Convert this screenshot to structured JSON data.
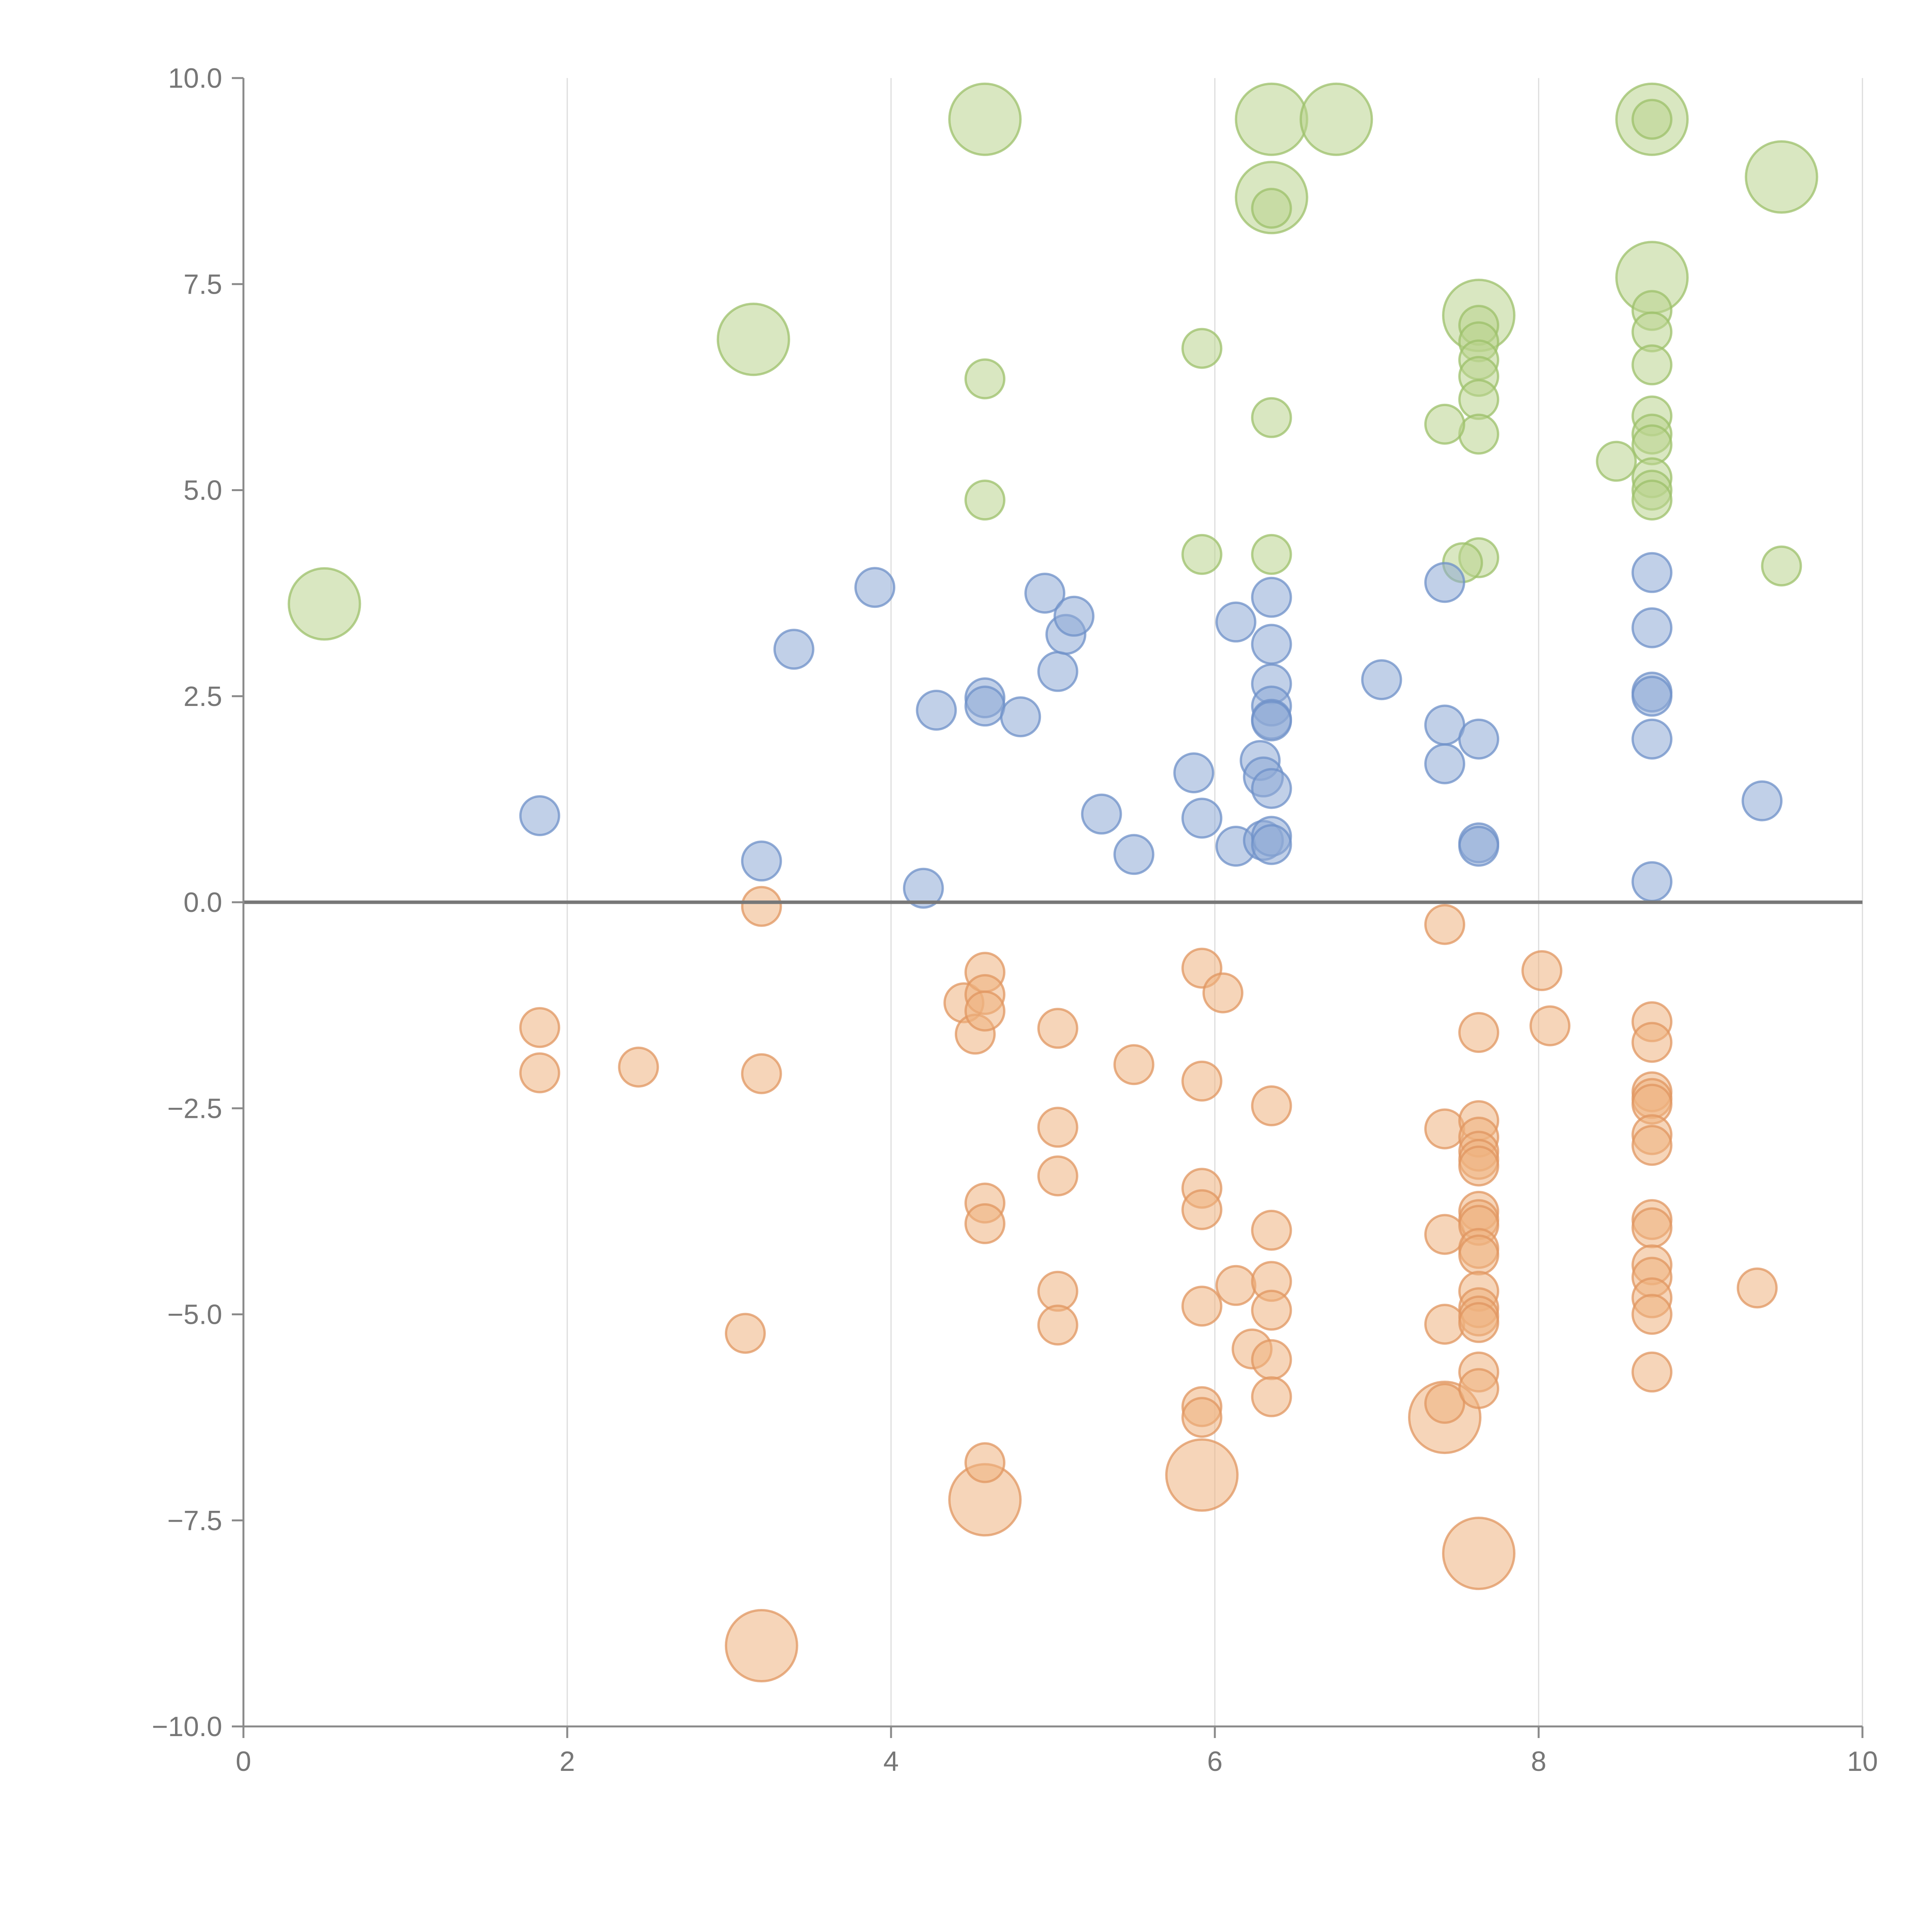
{
  "chart_data": {
    "type": "scatter",
    "title": "",
    "xlabel": "",
    "ylabel": "",
    "xlim": [
      0,
      10
    ],
    "ylim": [
      -10,
      10
    ],
    "grid": "vertical lines at x ticks",
    "legend": "none",
    "xticks": [
      "0",
      "2",
      "4",
      "6",
      "8",
      "10"
    ],
    "xtick_values": [
      0,
      2,
      4,
      6,
      8,
      10
    ],
    "yticks": [
      "10.0",
      "7.5",
      "5.0",
      "2.5",
      "0.0",
      "−2.5",
      "−5.0",
      "−7.5",
      "−10.0"
    ],
    "ytick_values": [
      10,
      7.5,
      5,
      2.5,
      0,
      -2.5,
      -5,
      -7.5,
      -10
    ],
    "zero_line_color": "#777777",
    "series": [
      {
        "name": "green",
        "fill": "#b9d48e",
        "stroke": "#9cc06a",
        "points": [
          [
            0.5,
            3.62,
            1
          ],
          [
            3.15,
            6.83,
            1
          ],
          [
            4.58,
            9.5,
            1
          ],
          [
            6.35,
            9.5,
            1
          ],
          [
            6.75,
            9.5,
            1
          ],
          [
            6.35,
            8.55,
            1
          ],
          [
            8.7,
            9.5,
            1
          ],
          [
            9.5,
            8.8,
            1
          ],
          [
            8.7,
            7.58,
            1
          ],
          [
            7.63,
            7.12,
            1
          ],
          [
            6.35,
            8.42,
            0
          ],
          [
            8.7,
            9.5,
            0
          ],
          [
            8.7,
            7.18,
            0
          ],
          [
            8.7,
            6.92,
            0
          ],
          [
            8.7,
            6.52,
            0
          ],
          [
            8.7,
            5.9,
            0
          ],
          [
            8.7,
            5.68,
            0
          ],
          [
            8.7,
            5.55,
            0
          ],
          [
            8.7,
            5.15,
            0
          ],
          [
            8.7,
            5.0,
            0
          ],
          [
            8.7,
            4.88,
            0
          ],
          [
            8.48,
            5.35,
            0
          ],
          [
            7.63,
            7.0,
            0
          ],
          [
            7.63,
            6.8,
            0
          ],
          [
            7.63,
            6.58,
            0
          ],
          [
            7.63,
            6.38,
            0
          ],
          [
            7.63,
            6.1,
            0
          ],
          [
            7.63,
            5.68,
            0
          ],
          [
            7.42,
            5.8,
            0
          ],
          [
            7.63,
            4.18,
            0
          ],
          [
            7.53,
            4.12,
            0
          ],
          [
            5.92,
            6.72,
            0
          ],
          [
            4.58,
            6.35,
            0
          ],
          [
            4.58,
            4.88,
            0
          ],
          [
            5.92,
            4.22,
            0
          ],
          [
            6.35,
            5.88,
            0
          ],
          [
            6.35,
            4.22,
            0
          ],
          [
            9.5,
            4.08,
            0
          ]
        ]
      },
      {
        "name": "blue",
        "fill": "#8eaad6",
        "stroke": "#6e90c8",
        "points": [
          [
            1.83,
            1.05,
            0
          ],
          [
            3.2,
            0.5,
            0
          ],
          [
            3.4,
            3.07,
            0
          ],
          [
            3.9,
            3.82,
            0
          ],
          [
            4.2,
            0.17,
            0
          ],
          [
            4.28,
            2.33,
            0
          ],
          [
            4.58,
            2.48,
            0
          ],
          [
            4.58,
            2.38,
            0
          ],
          [
            4.8,
            2.25,
            0
          ],
          [
            4.95,
            3.75,
            0
          ],
          [
            5.03,
            2.8,
            0
          ],
          [
            5.08,
            3.25,
            0
          ],
          [
            5.13,
            3.47,
            0
          ],
          [
            5.3,
            1.07,
            0
          ],
          [
            5.5,
            0.58,
            0
          ],
          [
            5.87,
            1.57,
            0
          ],
          [
            5.92,
            1.02,
            0
          ],
          [
            6.13,
            0.68,
            0
          ],
          [
            6.13,
            3.4,
            0
          ],
          [
            6.28,
            1.72,
            0
          ],
          [
            6.3,
            0.75,
            0
          ],
          [
            6.3,
            1.52,
            0
          ],
          [
            6.35,
            3.7,
            0
          ],
          [
            6.35,
            3.13,
            0
          ],
          [
            6.35,
            2.65,
            0
          ],
          [
            6.35,
            2.38,
            0
          ],
          [
            6.35,
            2.22,
            0
          ],
          [
            6.35,
            2.2,
            0
          ],
          [
            6.35,
            1.38,
            0
          ],
          [
            6.35,
            0.8,
            0
          ],
          [
            6.35,
            0.7,
            0
          ],
          [
            7.03,
            2.7,
            0
          ],
          [
            7.42,
            3.88,
            0
          ],
          [
            7.42,
            2.15,
            0
          ],
          [
            7.42,
            1.68,
            0
          ],
          [
            7.63,
            1.98,
            0
          ],
          [
            7.63,
            0.72,
            0
          ],
          [
            7.63,
            0.68,
            0
          ],
          [
            8.7,
            4.0,
            0
          ],
          [
            8.7,
            3.33,
            0
          ],
          [
            8.7,
            2.55,
            0
          ],
          [
            8.7,
            2.5,
            0
          ],
          [
            8.7,
            1.98,
            0
          ],
          [
            8.7,
            0.25,
            0
          ],
          [
            9.38,
            1.23,
            0
          ]
        ]
      },
      {
        "name": "orange",
        "fill": "#eeb280",
        "stroke": "#e09660",
        "points": [
          [
            3.2,
            -9.02,
            1
          ],
          [
            4.58,
            -7.25,
            1
          ],
          [
            5.92,
            -6.95,
            1
          ],
          [
            7.42,
            -6.25,
            1
          ],
          [
            7.63,
            -7.9,
            1
          ],
          [
            1.83,
            -1.52,
            0
          ],
          [
            1.83,
            -2.07,
            0
          ],
          [
            2.44,
            -2.0,
            0
          ],
          [
            3.1,
            -5.23,
            0
          ],
          [
            3.2,
            -0.05,
            0
          ],
          [
            3.2,
            -2.08,
            0
          ],
          [
            4.45,
            -1.22,
            0
          ],
          [
            4.52,
            -1.6,
            0
          ],
          [
            4.58,
            -0.85,
            0
          ],
          [
            4.58,
            -1.12,
            0
          ],
          [
            4.58,
            -1.32,
            0
          ],
          [
            4.58,
            -3.65,
            0
          ],
          [
            4.58,
            -3.9,
            0
          ],
          [
            4.58,
            -6.8,
            0
          ],
          [
            5.03,
            -1.53,
            0
          ],
          [
            5.03,
            -2.73,
            0
          ],
          [
            5.03,
            -3.32,
            0
          ],
          [
            5.03,
            -4.72,
            0
          ],
          [
            5.03,
            -5.13,
            0
          ],
          [
            5.5,
            -1.97,
            0
          ],
          [
            5.92,
            -0.8,
            0
          ],
          [
            5.92,
            -2.17,
            0
          ],
          [
            5.92,
            -3.47,
            0
          ],
          [
            5.92,
            -3.73,
            0
          ],
          [
            5.92,
            -4.9,
            0
          ],
          [
            5.92,
            -6.12,
            0
          ],
          [
            5.92,
            -6.25,
            0
          ],
          [
            6.05,
            -1.1,
            0
          ],
          [
            6.13,
            -4.65,
            0
          ],
          [
            6.23,
            -5.42,
            0
          ],
          [
            6.35,
            -2.47,
            0
          ],
          [
            6.35,
            -3.98,
            0
          ],
          [
            6.35,
            -4.6,
            0
          ],
          [
            6.35,
            -4.95,
            0
          ],
          [
            6.35,
            -5.55,
            0
          ],
          [
            6.35,
            -6.0,
            0
          ],
          [
            7.42,
            -0.27,
            0
          ],
          [
            7.42,
            -2.75,
            0
          ],
          [
            7.42,
            -4.03,
            0
          ],
          [
            7.42,
            -5.12,
            0
          ],
          [
            7.42,
            -6.08,
            0
          ],
          [
            7.63,
            -1.58,
            0
          ],
          [
            7.63,
            -2.65,
            0
          ],
          [
            7.63,
            -2.85,
            0
          ],
          [
            7.63,
            -3.02,
            0
          ],
          [
            7.63,
            -3.12,
            0
          ],
          [
            7.63,
            -3.2,
            0
          ],
          [
            7.63,
            -3.75,
            0
          ],
          [
            7.63,
            -3.85,
            0
          ],
          [
            7.63,
            -3.92,
            0
          ],
          [
            7.63,
            -4.2,
            0
          ],
          [
            7.63,
            -4.28,
            0
          ],
          [
            7.63,
            -4.72,
            0
          ],
          [
            7.63,
            -4.92,
            0
          ],
          [
            7.63,
            -5.02,
            0
          ],
          [
            7.63,
            -5.1,
            0
          ],
          [
            7.63,
            -5.7,
            0
          ],
          [
            7.63,
            -5.9,
            0
          ],
          [
            8.02,
            -0.83,
            0
          ],
          [
            8.07,
            -1.5,
            0
          ],
          [
            8.7,
            -1.45,
            0
          ],
          [
            8.7,
            -1.7,
            0
          ],
          [
            8.7,
            -2.3,
            0
          ],
          [
            8.7,
            -2.38,
            0
          ],
          [
            8.7,
            -2.45,
            0
          ],
          [
            8.7,
            -2.82,
            0
          ],
          [
            8.7,
            -2.95,
            0
          ],
          [
            8.7,
            -3.85,
            0
          ],
          [
            8.7,
            -3.95,
            0
          ],
          [
            8.7,
            -4.4,
            0
          ],
          [
            8.7,
            -4.55,
            0
          ],
          [
            8.7,
            -4.8,
            0
          ],
          [
            8.7,
            -5.0,
            0
          ],
          [
            8.7,
            -5.7,
            0
          ],
          [
            9.35,
            -4.68,
            0
          ]
        ]
      }
    ]
  }
}
